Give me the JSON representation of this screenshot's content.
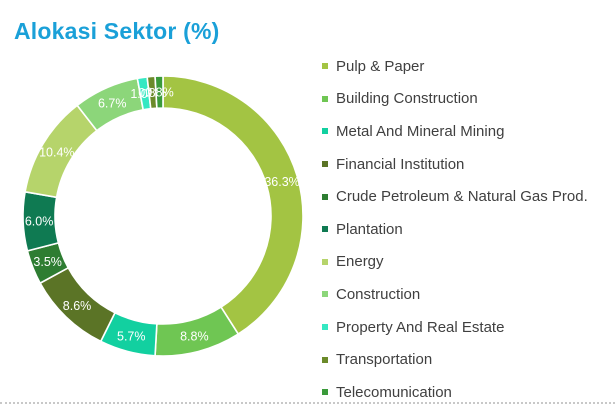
{
  "title": "Alokasi Sektor (%)",
  "chart_data": {
    "type": "pie",
    "donut": true,
    "title": "Alokasi Sektor (%)",
    "legend_position": "right",
    "series": [
      {
        "name": "Pulp & Paper",
        "value": 36.3,
        "label": "36.3%",
        "color": "#a3c443"
      },
      {
        "name": "Building Construction",
        "value": 8.8,
        "label": "8.8%",
        "color": "#6fc653"
      },
      {
        "name": "Metal And Mineral Mining",
        "value": 5.7,
        "label": "5.7%",
        "color": "#12d0a0"
      },
      {
        "name": "Financial Institution",
        "value": 8.6,
        "label": "8.6%",
        "color": "#5b7426"
      },
      {
        "name": "Crude Petroleum & Natural Gas Prod.",
        "value": 3.5,
        "label": "3.5%",
        "color": "#2e7d32"
      },
      {
        "name": "Plantation",
        "value": 6.0,
        "label": "6.0%",
        "color": "#0f7a52"
      },
      {
        "name": "Energy",
        "value": 10.4,
        "label": "10.4%",
        "color": "#b6d46b"
      },
      {
        "name": "Construction",
        "value": 6.7,
        "label": "6.7%",
        "color": "#8cd67a"
      },
      {
        "name": "Property And Real Estate",
        "value": 1.0,
        "label": "1.0%",
        "color": "#35e8c2"
      },
      {
        "name": "Transportation",
        "value": 0.8,
        "label": "0.8%",
        "color": "#6b8a2a"
      },
      {
        "name": "Telecomunication",
        "value": 0.8,
        "label": "0.8%",
        "color": "#3a9a3a"
      }
    ]
  }
}
